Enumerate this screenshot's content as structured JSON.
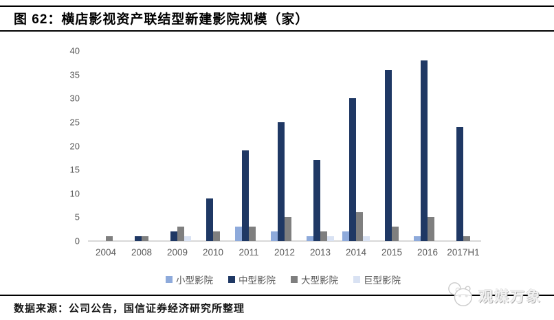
{
  "header": {
    "figure_label": "图 62：横店影视资产联结型新建影院规模（家）"
  },
  "footer": {
    "source_note": "数据来源：公司公告，国信证券经济研究所整理"
  },
  "watermark": {
    "text": "观媒万象",
    "icon": "panda-mascot-icon"
  },
  "chart_data": {
    "type": "bar",
    "title": "横店影视资产联结型新建影院规模（家）",
    "xlabel": "",
    "ylabel": "",
    "categories": [
      "2004",
      "2008",
      "2009",
      "2010",
      "2011",
      "2012",
      "2013",
      "2014",
      "2015",
      "2016",
      "2017H1"
    ],
    "series": [
      {
        "name": "小型影院",
        "color": "#8EAADB",
        "values": [
          0,
          0,
          0,
          0,
          3,
          2,
          1,
          2,
          0,
          1,
          0
        ]
      },
      {
        "name": "中型影院",
        "color": "#1F3864",
        "values": [
          0,
          1,
          2,
          9,
          19,
          25,
          17,
          30,
          36,
          38,
          24
        ]
      },
      {
        "name": "大型影院",
        "color": "#7F7F7F",
        "values": [
          1,
          1,
          3,
          2,
          3,
          5,
          2,
          6,
          3,
          5,
          1
        ]
      },
      {
        "name": "巨型影院",
        "color": "#D9E2F3",
        "values": [
          0,
          0,
          1,
          0,
          0,
          0,
          1,
          1,
          0,
          0,
          0
        ]
      }
    ],
    "ylim": [
      0,
      40
    ],
    "yticks": [
      0,
      5,
      10,
      15,
      20,
      25,
      30,
      35,
      40
    ],
    "grid": false,
    "legend_position": "bottom",
    "axis_text_color": "#595959",
    "axis_line_color": "#D8D8D8"
  }
}
